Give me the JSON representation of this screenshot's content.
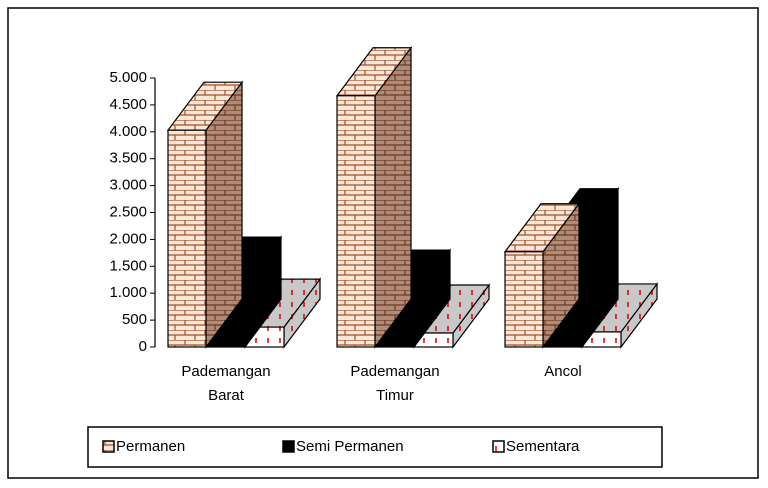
{
  "chart_data": {
    "type": "bar3d",
    "categories": [
      "Pademangan Barat",
      "Pademangan Timur",
      "Ancol"
    ],
    "series": [
      {
        "name": "Permanen",
        "color": "#e8c9b0",
        "values": [
          4030,
          4670,
          1770
        ]
      },
      {
        "name": "Semi Permanen",
        "color": "#000000",
        "values": [
          1150,
          910,
          2050
        ]
      },
      {
        "name": "Sementara",
        "color": "#ffffff",
        "values": [
          370,
          260,
          280
        ]
      }
    ],
    "ylim": [
      0,
      5000
    ],
    "yticks": [
      0,
      500,
      {
        "value": 1000,
        "label": "1.000"
      },
      {
        "value": 1500,
        "label": "1.500"
      },
      {
        "value": 2000,
        "label": "2.000"
      },
      {
        "value": 2500,
        "label": "2.500"
      },
      {
        "value": 3000,
        "label": "3.000"
      },
      {
        "value": 3500,
        "label": "3.500"
      },
      {
        "value": 4000,
        "label": "4.000"
      },
      {
        "value": 4500,
        "label": "4.500"
      },
      {
        "value": 5000,
        "label": "5.000"
      }
    ]
  }
}
